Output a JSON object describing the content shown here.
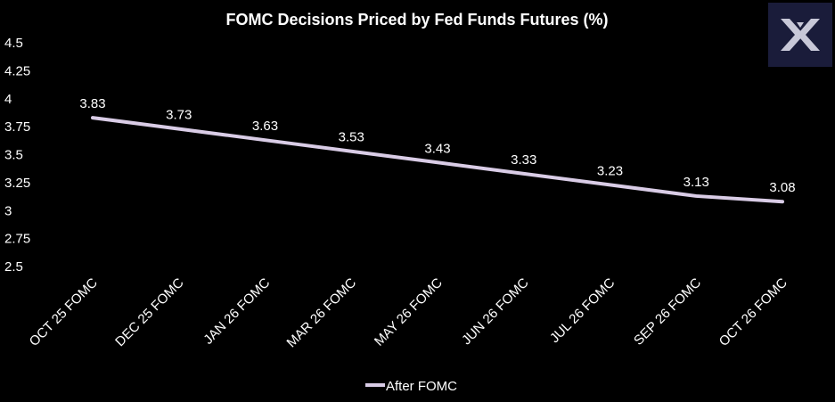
{
  "chart_data": {
    "type": "line",
    "title": "FOMC Decisions Priced by Fed Funds Futures (%)",
    "xlabel": "",
    "ylabel": "",
    "categories": [
      "OCT 25 FOMC",
      "DEC 25 FOMC",
      "JAN 26 FOMC",
      "MAR 26 FOMC",
      "MAY 26 FOMC",
      "JUN 26 FOMC",
      "JUL 26 FOMC",
      "SEP 26 FOMC",
      "OCT 26 FOMC"
    ],
    "series": [
      {
        "name": "After FOMC",
        "values": [
          3.83,
          3.73,
          3.63,
          3.53,
          3.43,
          3.33,
          3.23,
          3.13,
          3.08
        ]
      }
    ],
    "ylim": [
      2.5,
      4.5
    ],
    "yticks": [
      2.5,
      2.75,
      3,
      3.25,
      3.5,
      3.75,
      4,
      4.25,
      4.5
    ],
    "ytick_labels": [
      "2.5",
      "2.75",
      "3",
      "3.25",
      "3.5",
      "3.75",
      "4",
      "4.25",
      "4.5"
    ],
    "data_labels": [
      "3.83",
      "3.73",
      "3.63",
      "3.53",
      "3.43",
      "3.33",
      "3.23",
      "3.13",
      "3.08"
    ],
    "grid": false,
    "legend_position": "bottom-center"
  },
  "colors": {
    "background": "#000000",
    "text": "#ffffff",
    "line": "#d9cce6",
    "logo_bg": "#1a1c3a",
    "logo_fg": "#c8c8d8"
  },
  "logo": {
    "icon": "x-logo-icon"
  }
}
